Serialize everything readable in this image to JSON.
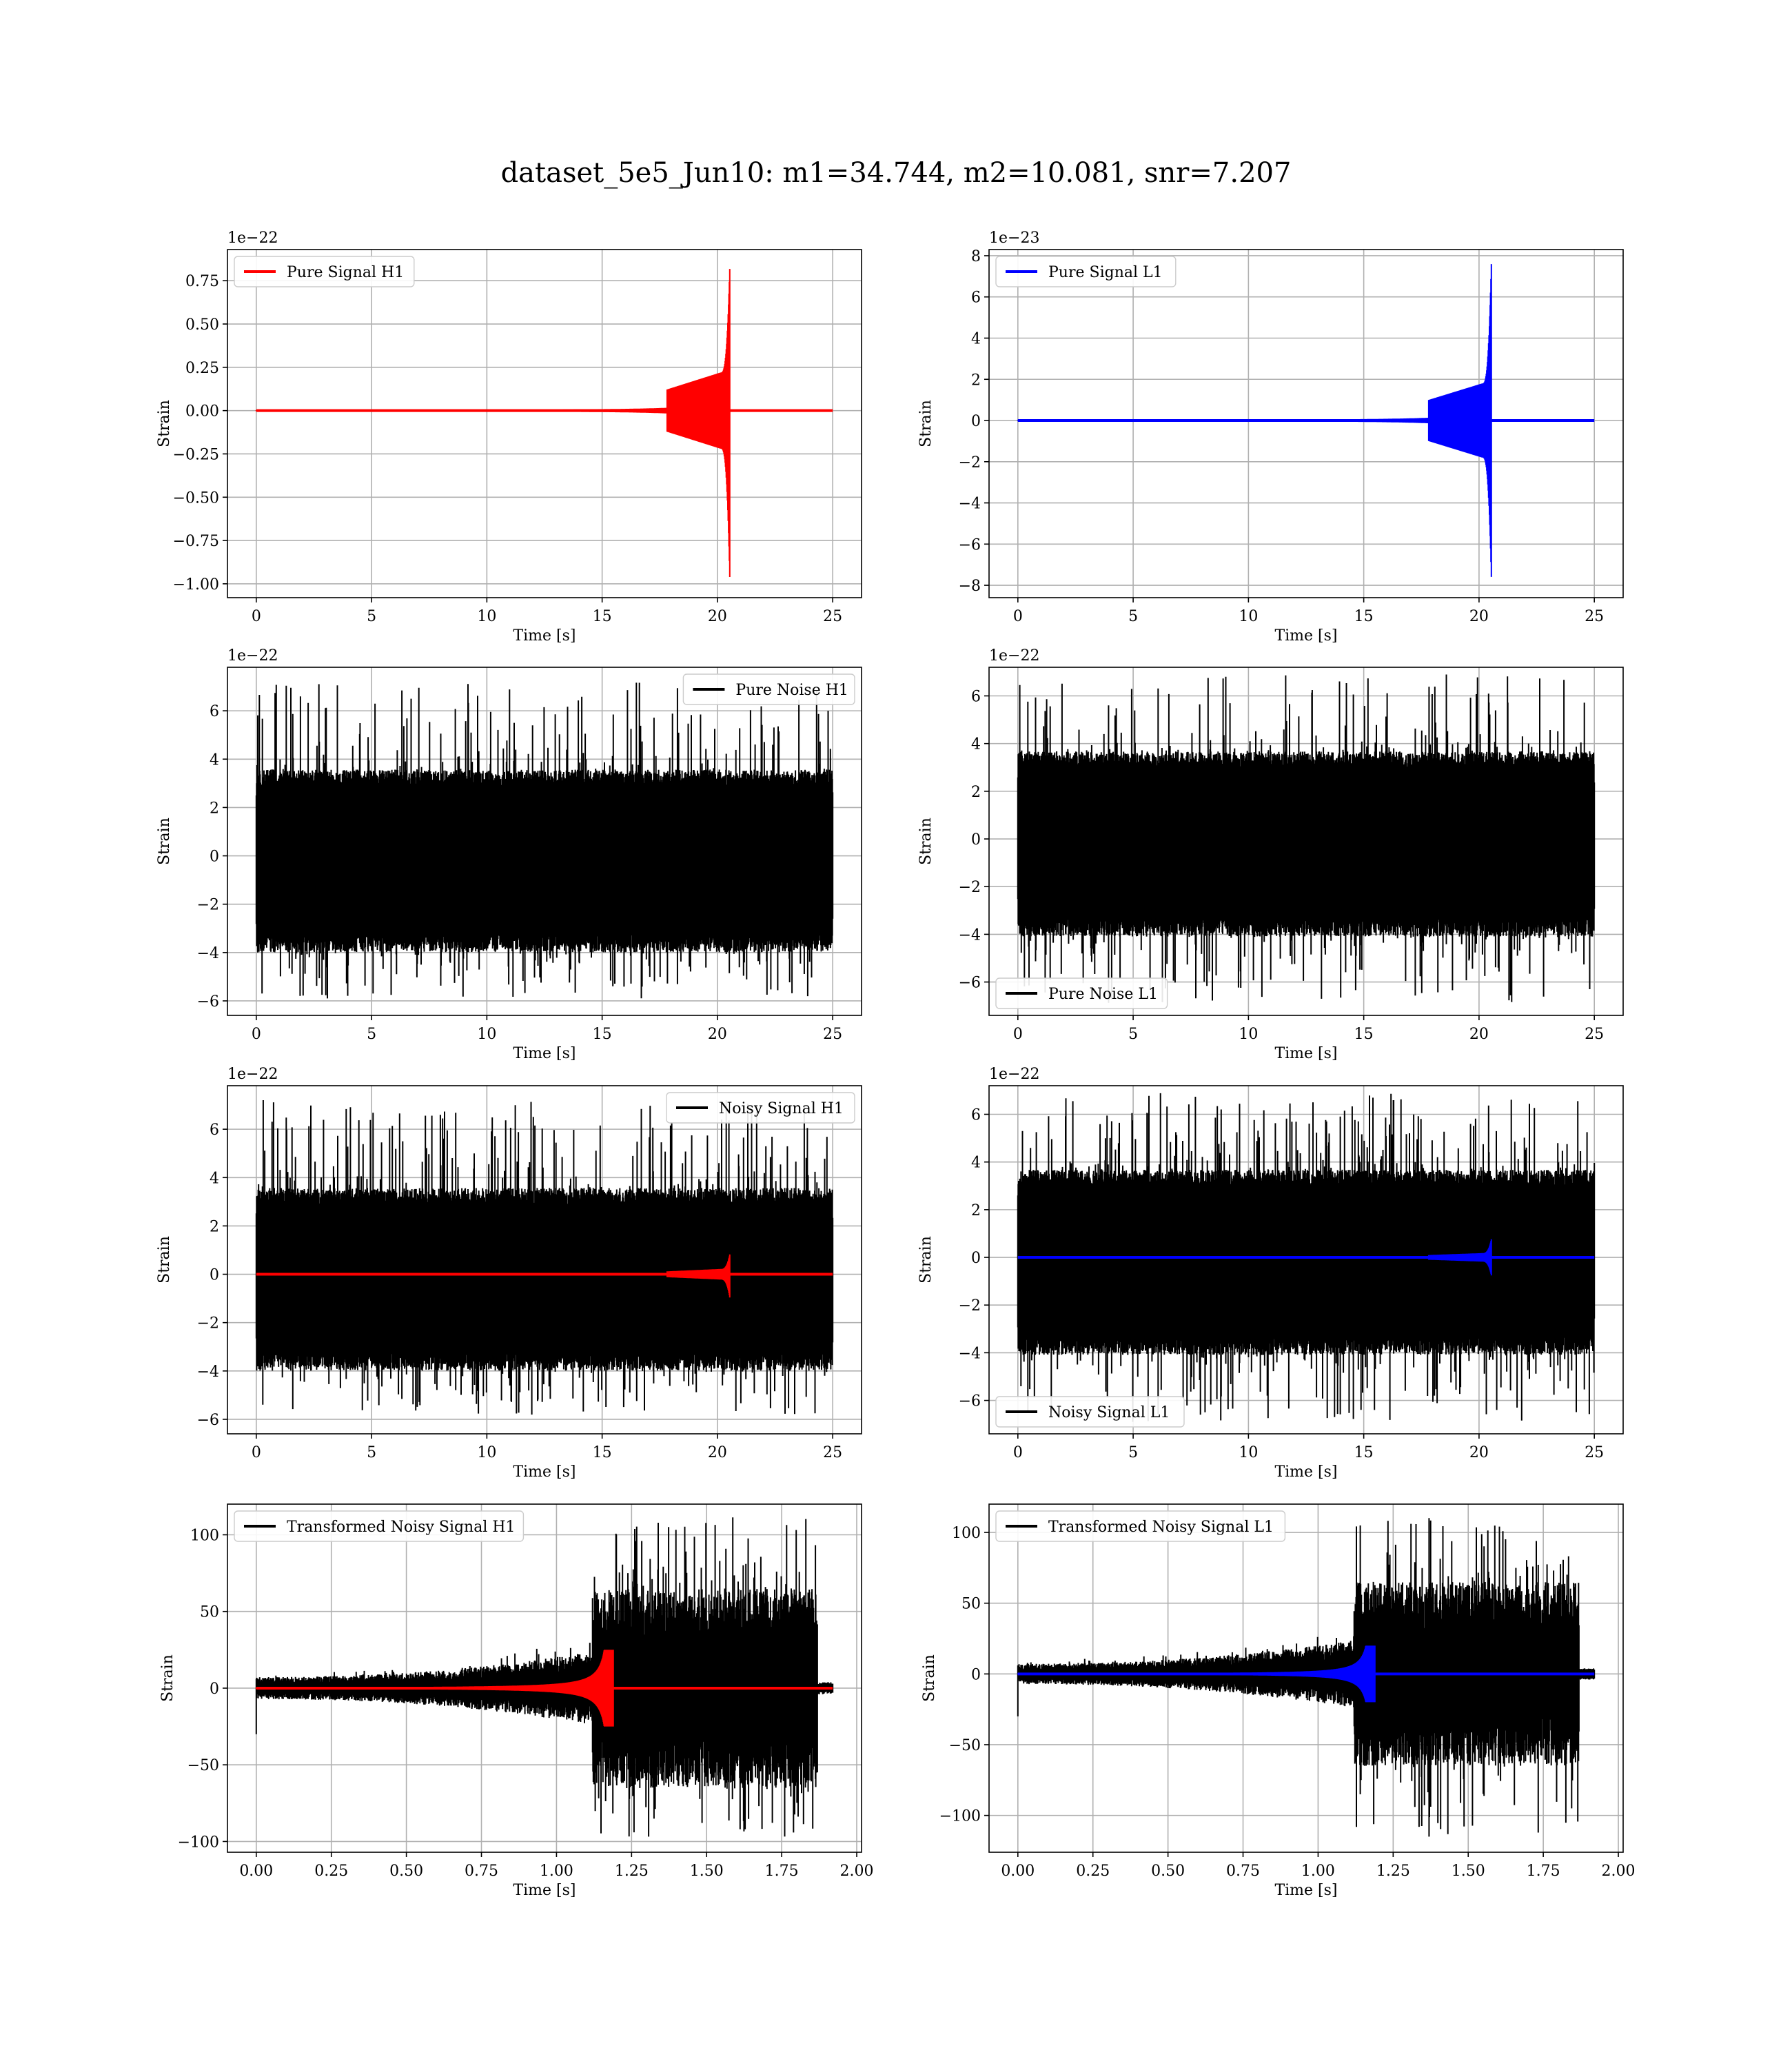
{
  "title": "dataset_5e5_Jun10: m1=34.744, m2=10.081, snr=7.207",
  "colors": {
    "h1": "#ff0000",
    "l1": "#0000ff",
    "noise": "#000000",
    "grid": "#b0b0b0"
  },
  "chart_data": [
    {
      "type": "line",
      "panel": "pure-signal-h1",
      "xlabel": "Time [s]",
      "ylabel": "Strain",
      "offset_text": "1e−22",
      "xlim": [
        -1.25,
        26.25
      ],
      "ylim": [
        -1.08,
        0.93
      ],
      "xticks": [
        0,
        5,
        10,
        15,
        20,
        25
      ],
      "xticklabels": [
        "0",
        "5",
        "10",
        "15",
        "20",
        "25"
      ],
      "yticks": [
        -1.0,
        -0.75,
        -0.5,
        -0.25,
        0.0,
        0.25,
        0.5,
        0.75
      ],
      "yticklabels": [
        "−1.00",
        "−0.75",
        "−0.50",
        "−0.25",
        "0.00",
        "0.25",
        "0.50",
        "0.75"
      ],
      "legend": "upper left",
      "grid": true,
      "series": [
        {
          "name": "Pure Signal H1",
          "color": "#ff0000",
          "kind": "chirp",
          "x_range": [
            0,
            25
          ],
          "merger_time": 20.5,
          "peak_max": 0.85,
          "peak_min": -1.0,
          "plateau": 0.22
        }
      ]
    },
    {
      "type": "line",
      "panel": "pure-signal-l1",
      "xlabel": "Time [s]",
      "ylabel": "Strain",
      "offset_text": "1e−23",
      "xlim": [
        -1.25,
        26.25
      ],
      "ylim": [
        -8.6,
        8.3
      ],
      "xticks": [
        0,
        5,
        10,
        15,
        20,
        25
      ],
      "xticklabels": [
        "0",
        "5",
        "10",
        "15",
        "20",
        "25"
      ],
      "yticks": [
        -8,
        -6,
        -4,
        -2,
        0,
        2,
        4,
        6,
        8
      ],
      "yticklabels": [
        "−8",
        "−6",
        "−4",
        "−2",
        "0",
        "2",
        "4",
        "6",
        "8"
      ],
      "legend": "upper left",
      "grid": true,
      "series": [
        {
          "name": "Pure Signal L1",
          "color": "#0000ff",
          "kind": "chirp",
          "x_range": [
            0,
            25
          ],
          "merger_time": 20.5,
          "peak_max": 7.9,
          "peak_min": -7.9,
          "plateau": 1.8
        }
      ]
    },
    {
      "type": "line",
      "panel": "pure-noise-h1",
      "xlabel": "Time [s]",
      "ylabel": "Strain",
      "offset_text": "1e−22",
      "xlim": [
        -1.25,
        26.25
      ],
      "ylim": [
        -6.6,
        7.8
      ],
      "xticks": [
        0,
        5,
        10,
        15,
        20,
        25
      ],
      "xticklabels": [
        "0",
        "5",
        "10",
        "15",
        "20",
        "25"
      ],
      "yticks": [
        -6,
        -4,
        -2,
        0,
        2,
        4,
        6
      ],
      "yticklabels": [
        "−6",
        "−4",
        "−2",
        "0",
        "2",
        "4",
        "6"
      ],
      "legend": "upper right",
      "grid": true,
      "series": [
        {
          "name": "Pure Noise H1",
          "color": "#000000",
          "kind": "noise",
          "x_range": [
            0,
            25
          ],
          "band": [
            -3.8,
            3.4
          ],
          "extreme_max": 7.2,
          "extreme_min": -5.9
        }
      ]
    },
    {
      "type": "line",
      "panel": "pure-noise-l1",
      "xlabel": "Time [s]",
      "ylabel": "Strain",
      "offset_text": "1e−22",
      "xlim": [
        -1.25,
        26.25
      ],
      "ylim": [
        -7.4,
        7.2
      ],
      "xticks": [
        0,
        5,
        10,
        15,
        20,
        25
      ],
      "xticklabels": [
        "0",
        "5",
        "10",
        "15",
        "20",
        "25"
      ],
      "yticks": [
        -6,
        -4,
        -2,
        0,
        2,
        4,
        6
      ],
      "yticklabels": [
        "−6",
        "−4",
        "−2",
        "0",
        "2",
        "4",
        "6"
      ],
      "legend": "lower left",
      "grid": true,
      "series": [
        {
          "name": "Pure Noise L1",
          "color": "#000000",
          "kind": "noise",
          "x_range": [
            0,
            25
          ],
          "band": [
            -3.9,
            3.5
          ],
          "extreme_max": 6.9,
          "extreme_min": -6.9
        }
      ]
    },
    {
      "type": "line",
      "panel": "noisy-signal-h1",
      "xlabel": "Time [s]",
      "ylabel": "Strain",
      "offset_text": "1e−22",
      "xlim": [
        -1.25,
        26.25
      ],
      "ylim": [
        -6.6,
        7.8
      ],
      "xticks": [
        0,
        5,
        10,
        15,
        20,
        25
      ],
      "xticklabels": [
        "0",
        "5",
        "10",
        "15",
        "20",
        "25"
      ],
      "yticks": [
        -6,
        -4,
        -2,
        0,
        2,
        4,
        6
      ],
      "yticklabels": [
        "−6",
        "−4",
        "−2",
        "0",
        "2",
        "4",
        "6"
      ],
      "legend": "upper right",
      "grid": true,
      "series": [
        {
          "name": "Noisy Signal H1",
          "color": "#000000",
          "kind": "noise",
          "x_range": [
            0,
            25
          ],
          "band": [
            -3.8,
            3.4
          ],
          "extreme_max": 7.2,
          "extreme_min": -5.9
        },
        {
          "color": "#ff0000",
          "kind": "chirp",
          "x_range": [
            0,
            25
          ],
          "merger_time": 20.5,
          "peak_max": 0.85,
          "peak_min": -1.0,
          "plateau": 0.22
        }
      ]
    },
    {
      "type": "line",
      "panel": "noisy-signal-l1",
      "xlabel": "Time [s]",
      "ylabel": "Strain",
      "offset_text": "1e−22",
      "xlim": [
        -1.25,
        26.25
      ],
      "ylim": [
        -7.4,
        7.2
      ],
      "xticks": [
        0,
        5,
        10,
        15,
        20,
        25
      ],
      "xticklabels": [
        "0",
        "5",
        "10",
        "15",
        "20",
        "25"
      ],
      "yticks": [
        -6,
        -4,
        -2,
        0,
        2,
        4,
        6
      ],
      "yticklabels": [
        "−6",
        "−4",
        "−2",
        "0",
        "2",
        "4",
        "6"
      ],
      "legend": "lower left",
      "grid": true,
      "series": [
        {
          "name": "Noisy Signal L1",
          "color": "#000000",
          "kind": "noise",
          "x_range": [
            0,
            25
          ],
          "band": [
            -3.9,
            3.5
          ],
          "extreme_max": 6.9,
          "extreme_min": -6.9
        },
        {
          "color": "#0000ff",
          "kind": "chirp",
          "x_range": [
            0,
            25
          ],
          "merger_time": 20.5,
          "peak_max": 0.79,
          "peak_min": -0.79,
          "plateau": 0.18
        }
      ]
    },
    {
      "type": "line",
      "panel": "transformed-noisy-signal-h1",
      "xlabel": "Time [s]",
      "ylabel": "Strain",
      "offset_text": "",
      "xlim": [
        -0.096,
        2.016
      ],
      "ylim": [
        -107,
        120
      ],
      "xticks": [
        0.0,
        0.25,
        0.5,
        0.75,
        1.0,
        1.25,
        1.5,
        1.75,
        2.0
      ],
      "xticklabels": [
        "0.00",
        "0.25",
        "0.50",
        "0.75",
        "1.00",
        "1.25",
        "1.50",
        "1.75",
        "2.00"
      ],
      "yticks": [
        -100,
        -50,
        0,
        50,
        100
      ],
      "yticklabels": [
        "−100",
        "−50",
        "0",
        "50",
        "100"
      ],
      "legend": "upper left",
      "grid": true,
      "series": [
        {
          "name": "Transformed Noisy Signal H1",
          "color": "#000000",
          "kind": "tnoise",
          "x_range": [
            0,
            1.92
          ],
          "jump_time": 1.12,
          "end_time": 1.87,
          "extreme_max": 112,
          "extreme_min": -97
        },
        {
          "color": "#ff0000",
          "kind": "tchirp",
          "x_range": [
            0,
            1.92
          ],
          "merger_time": 1.18,
          "peak": 25
        }
      ]
    },
    {
      "type": "line",
      "panel": "transformed-noisy-signal-l1",
      "xlabel": "Time [s]",
      "ylabel": "Strain",
      "offset_text": "",
      "xlim": [
        -0.096,
        2.016
      ],
      "ylim": [
        -126,
        120
      ],
      "xticks": [
        0.0,
        0.25,
        0.5,
        0.75,
        1.0,
        1.25,
        1.5,
        1.75,
        2.0
      ],
      "xticklabels": [
        "0.00",
        "0.25",
        "0.50",
        "0.75",
        "1.00",
        "1.25",
        "1.50",
        "1.75",
        "2.00"
      ],
      "yticks": [
        -100,
        -50,
        0,
        50,
        100
      ],
      "yticklabels": [
        "−100",
        "−50",
        "0",
        "50",
        "100"
      ],
      "legend": "upper left",
      "grid": true,
      "series": [
        {
          "name": "Transformed Noisy Signal L1",
          "color": "#000000",
          "kind": "tnoise",
          "x_range": [
            0,
            1.92
          ],
          "jump_time": 1.12,
          "end_time": 1.87,
          "extreme_max": 112,
          "extreme_min": -116
        },
        {
          "color": "#0000ff",
          "kind": "tchirp",
          "x_range": [
            0,
            1.92
          ],
          "merger_time": 1.18,
          "peak": 20
        }
      ]
    }
  ]
}
